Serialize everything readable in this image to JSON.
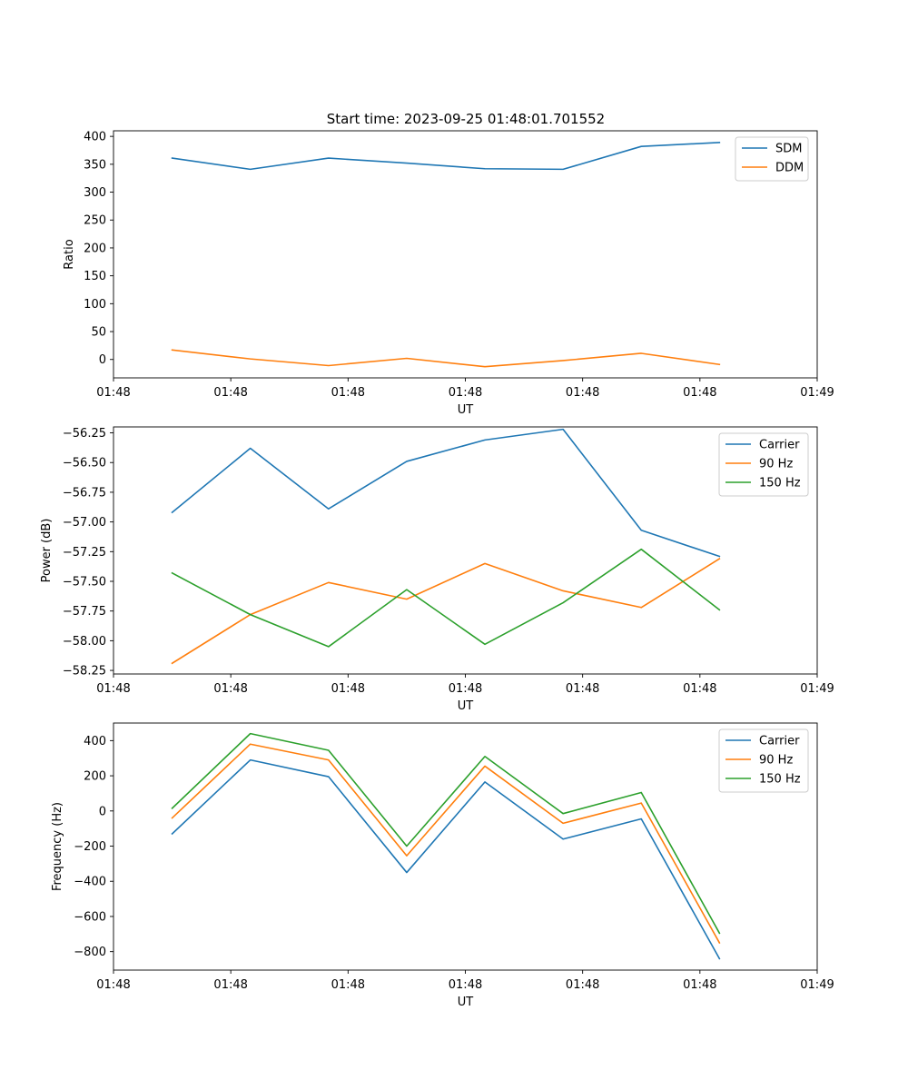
{
  "title": "Start time: 2023-09-25 01:48:01.701552",
  "colors": {
    "c0": "#1f77b4",
    "c1": "#ff7f0e",
    "c2": "#2ca02c"
  },
  "chart_data": [
    {
      "type": "line",
      "title": "Start time: 2023-09-25 01:48:01.701552",
      "xlabel": "UT",
      "ylabel": "Ratio",
      "x_tick_labels": [
        "01:48",
        "01:48",
        "01:48",
        "01:48",
        "01:48",
        "01:48",
        "01:49"
      ],
      "xlim": [
        -0.75,
        8.25
      ],
      "x": [
        0,
        1,
        2,
        3,
        4,
        5,
        6,
        7
      ],
      "ylim": [
        -33,
        410
      ],
      "yticks": [
        0,
        50,
        100,
        150,
        200,
        250,
        300,
        350,
        400
      ],
      "ytick_labels": [
        "0",
        "50",
        "100",
        "150",
        "200",
        "250",
        "300",
        "350",
        "400"
      ],
      "grid": false,
      "legend": "upper right",
      "series": [
        {
          "name": "SDM",
          "color": "#1f77b4",
          "values": [
            361,
            341,
            361,
            352,
            342,
            341,
            382,
            389
          ]
        },
        {
          "name": "DDM",
          "color": "#ff7f0e",
          "values": [
            17,
            1,
            -11,
            2,
            -13,
            -2,
            11,
            -9
          ]
        }
      ]
    },
    {
      "type": "line",
      "xlabel": "UT",
      "ylabel": "Power (dB)",
      "x_tick_labels": [
        "01:48",
        "01:48",
        "01:48",
        "01:48",
        "01:48",
        "01:48",
        "01:49"
      ],
      "xlim": [
        -0.75,
        8.25
      ],
      "x": [
        0,
        1,
        2,
        3,
        4,
        5,
        6,
        7
      ],
      "ylim": [
        -58.28,
        -56.2
      ],
      "yticks": [
        -56.25,
        -56.5,
        -56.75,
        -57.0,
        -57.25,
        -57.5,
        -57.75,
        -58.0,
        -58.25
      ],
      "ytick_labels": [
        "−56.25",
        "−56.50",
        "−56.75",
        "−57.00",
        "−57.25",
        "−57.50",
        "−57.75",
        "−58.00",
        "−58.25"
      ],
      "grid": false,
      "legend": "upper right",
      "series": [
        {
          "name": "Carrier",
          "color": "#1f77b4",
          "values": [
            -56.92,
            -56.38,
            -56.89,
            -56.49,
            -56.31,
            -56.22,
            -57.07,
            -57.29
          ]
        },
        {
          "name": "90 Hz",
          "color": "#ff7f0e",
          "values": [
            -58.19,
            -57.78,
            -57.51,
            -57.65,
            -57.35,
            -57.58,
            -57.72,
            -57.31
          ]
        },
        {
          "name": "150 Hz",
          "color": "#2ca02c",
          "values": [
            -57.43,
            -57.78,
            -58.05,
            -57.57,
            -58.03,
            -57.68,
            -57.23,
            -57.74
          ]
        }
      ]
    },
    {
      "type": "line",
      "xlabel": "UT",
      "ylabel": "Frequency (Hz)",
      "x_tick_labels": [
        "01:48",
        "01:48",
        "01:48",
        "01:48",
        "01:48",
        "01:48",
        "01:49"
      ],
      "xlim": [
        -0.75,
        8.25
      ],
      "x": [
        0,
        1,
        2,
        3,
        4,
        5,
        6,
        7
      ],
      "ylim": [
        -905,
        500
      ],
      "yticks": [
        400,
        200,
        0,
        -200,
        -400,
        -600,
        -800
      ],
      "ytick_labels": [
        "400",
        "200",
        "0",
        "−200",
        "−400",
        "−600",
        "−800"
      ],
      "grid": false,
      "legend": "upper right",
      "series": [
        {
          "name": "Carrier",
          "color": "#1f77b4",
          "values": [
            -130,
            290,
            195,
            -350,
            165,
            -160,
            -45,
            -840
          ]
        },
        {
          "name": "90 Hz",
          "color": "#ff7f0e",
          "values": [
            -40,
            380,
            290,
            -255,
            255,
            -70,
            45,
            -750
          ]
        },
        {
          "name": "150 Hz",
          "color": "#2ca02c",
          "values": [
            15,
            440,
            345,
            -200,
            310,
            -15,
            105,
            -695
          ]
        }
      ]
    }
  ]
}
